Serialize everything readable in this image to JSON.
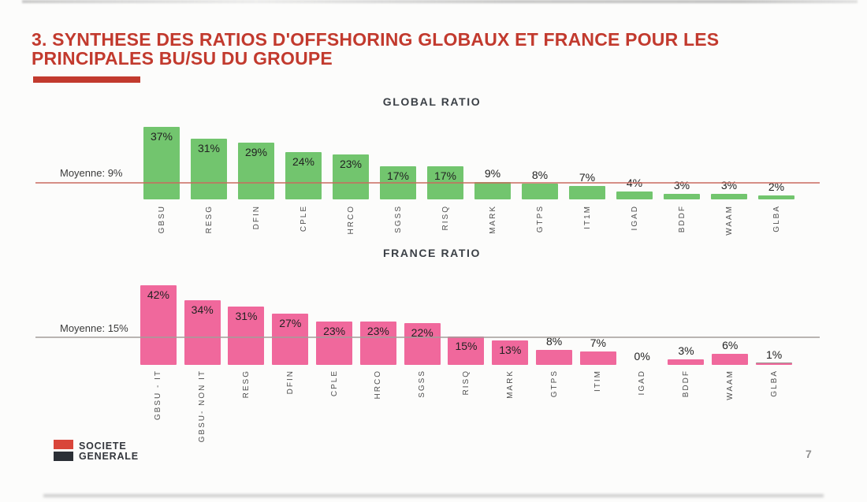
{
  "header": {
    "title_line1": "3. SYNTHESE DES RATIOS D'OFFSHORING GLOBAUX ET FRANCE POUR LES",
    "title_line2": "PRINCIPALES BU/SU DU GROUPE",
    "accent_color": "#c23a2e"
  },
  "chart_data": [
    {
      "type": "bar",
      "title": "GLOBAL RATIO",
      "categories": [
        "GBSU",
        "RESG",
        "DFIN",
        "CPLE",
        "HRCO",
        "SGSS",
        "RISQ",
        "MARK",
        "GTPS",
        "IT1M",
        "IGAD",
        "BDDF",
        "WAAM",
        "GLBA"
      ],
      "values": [
        37,
        31,
        29,
        24,
        23,
        17,
        17,
        9,
        8,
        7,
        4,
        3,
        3,
        2
      ],
      "unit": "%",
      "value_labels": "shown on each bar",
      "average_line": {
        "label": "Moyenne: 9%",
        "value": 9,
        "color": "#c96a5f"
      },
      "bar_color": "#72c56e",
      "xlabel_rotation": 90,
      "grid": false,
      "legend": false
    },
    {
      "type": "bar",
      "title": "FRANCE RATIO",
      "categories": [
        "GBSU - IT",
        "GBSU- NON IT",
        "RESG",
        "DFIN",
        "CPLE",
        "HRCO",
        "SGSS",
        "RISQ",
        "MARK",
        "GTPS",
        "ITIM",
        "IGAD",
        "BDDF",
        "WAAM",
        "GLBA"
      ],
      "values": [
        42,
        34,
        31,
        27,
        23,
        23,
        22,
        15,
        13,
        8,
        7,
        0,
        3,
        6,
        1
      ],
      "unit": "%",
      "value_labels": "shown on each bar",
      "average_line": {
        "label": "Moyenne: 15%",
        "value": 15,
        "color": "#a39d99"
      },
      "bar_color": "#f0689c",
      "xlabel_rotation": 90,
      "grid": false,
      "legend": false
    }
  ],
  "footer": {
    "logo_line1": "SOCIETE",
    "logo_line2": "GENERALE",
    "logo_red": "#d9453a",
    "logo_dark": "#2b2f36",
    "page_number": "7"
  }
}
